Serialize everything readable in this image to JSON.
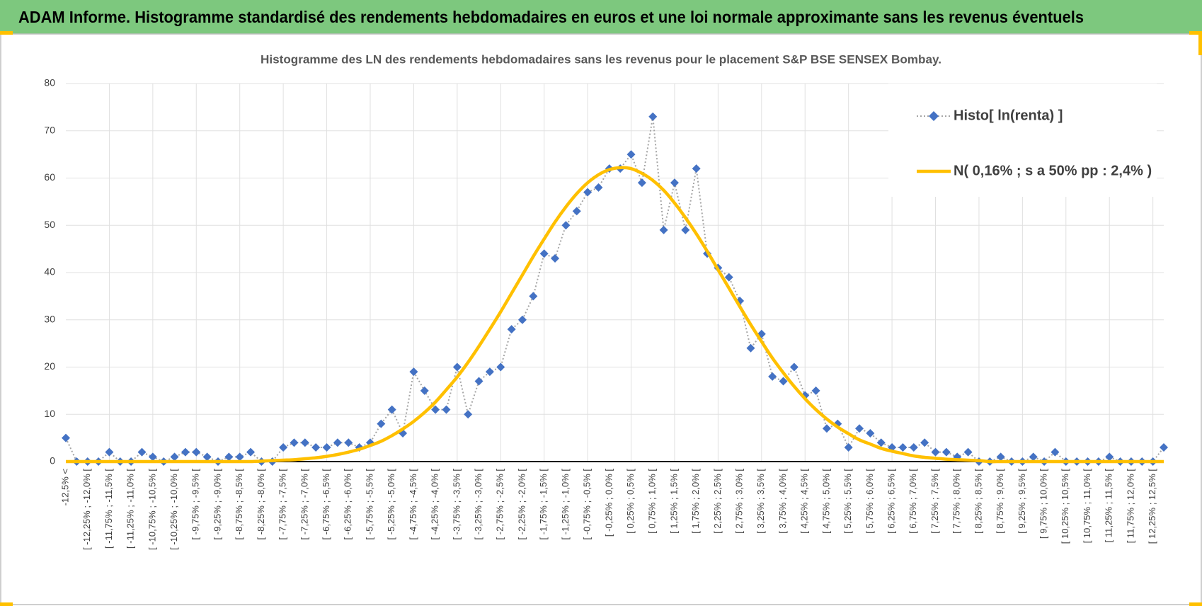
{
  "header": {
    "title": "ADAM Informe. Histogramme standardisé des rendements hebdomadaires en euros et une loi normale approximante sans les revenus éventuels"
  },
  "chart_data": {
    "type": "line",
    "title": "Histogramme des LN des rendements hebdomadaires sans les revenus pour le placement S&P BSE SENSEX Bombay.",
    "categories": [
      "-12,5% <",
      null,
      "[ -12,25% ; -12,0% [",
      null,
      "[ -11,75% ; -11,5% [",
      null,
      "[ -11,25% ; -11,0% [",
      null,
      "[ -10,75% ; -10,5% [",
      null,
      "[ -10,25% ; -10,0% [",
      null,
      "[ -9,75% ; -9,5% [",
      null,
      "[ -9,25% ; -9,0% [",
      null,
      "[ -8,75% ; -8,5% [",
      null,
      "[ -8,25% ; -8,0% [",
      null,
      "[ -7,75% ; -7,5% [",
      null,
      "[ -7,25% ; -7,0% [",
      null,
      "[ -6,75% ; -6,5% [",
      null,
      "[ -6,25% ; -6,0% [",
      null,
      "[ -5,75% ; -5,5% [",
      null,
      "[ -5,25% ; -5,0% [",
      null,
      "[ -4,75% ; -4,5% [",
      null,
      "[ -4,25% ; -4,0% [",
      null,
      "[ -3,75% ; -3,5% [",
      null,
      "[ -3,25% ; -3,0% [",
      null,
      "[ -2,75% ; -2,5% [",
      null,
      "[ -2,25% ; -2,0% [",
      null,
      "[ -1,75% ; -1,5% [",
      null,
      "[ -1,25% ; -1,0% [",
      null,
      "[ -0,75% ; -0,5% [",
      null,
      "[ -0,25% ; 0,0% [",
      null,
      "[ 0,25% ; 0,5% [",
      null,
      "[ 0,75% ; 1,0% [",
      null,
      "[ 1,25% ; 1,5% [",
      null,
      "[ 1,75% ; 2,0% [",
      null,
      "[ 2,25% ; 2,5% [",
      null,
      "[ 2,75% ; 3,0% [",
      null,
      "[ 3,25% ; 3,5% [",
      null,
      "[ 3,75% ; 4,0% [",
      null,
      "[ 4,25% ; 4,5% [",
      null,
      "[ 4,75% ; 5,0% [",
      null,
      "[ 5,25% ; 5,5% [",
      null,
      "[ 5,75% ; 6,0% [",
      null,
      "[ 6,25% ; 6,5% [",
      null,
      "[ 6,75% ; 7,0% [",
      null,
      "[ 7,25% ; 7,5% [",
      null,
      "[ 7,75% ; 8,0% [",
      null,
      "[ 8,25% ; 8,5% [",
      null,
      "[ 8,75% ; 9,0% [",
      null,
      "[ 9,25% ; 9,5% [",
      null,
      "[ 9,75% ; 10,0% [",
      null,
      "[ 10,25% ; 10,5% [",
      null,
      "[ 10,75% ; 11,0% [",
      null,
      "[ 11,25% ; 11,5% [",
      null,
      "[ 11,75% ; 12,0% [",
      null,
      "[ 12,25% ; 12,5% [",
      null
    ],
    "series": [
      {
        "name": "Histo[ ln(renta) ]",
        "color": "#4472c4",
        "line_color": "#a5a5a5",
        "marker": "diamond",
        "values": [
          5,
          0,
          0,
          0,
          2,
          0,
          0,
          2,
          1,
          0,
          1,
          2,
          2,
          1,
          0,
          1,
          1,
          2,
          0,
          0,
          3,
          4,
          4,
          3,
          3,
          4,
          4,
          3,
          4,
          8,
          11,
          6,
          19,
          15,
          11,
          11,
          20,
          10,
          17,
          19,
          20,
          28,
          30,
          35,
          44,
          43,
          50,
          53,
          57,
          58,
          62,
          62,
          65,
          59,
          73,
          49,
          59,
          49,
          62,
          44,
          41,
          39,
          34,
          24,
          27,
          18,
          17,
          20,
          14,
          15,
          7,
          8,
          3,
          7,
          6,
          4,
          3,
          3,
          3,
          4,
          2,
          2,
          1,
          2,
          0,
          0,
          1,
          0,
          0,
          1,
          0,
          2,
          0,
          0,
          0,
          0,
          1,
          0,
          0,
          0,
          0,
          3
        ]
      },
      {
        "name": "N( 0,16% ; s a 50% pp : 2,4% )",
        "color": "#ffc000",
        "smooth": true,
        "values": [
          0,
          0,
          0,
          0,
          0,
          0,
          0,
          0,
          0,
          0,
          0,
          0,
          0,
          0,
          0,
          0,
          0,
          0,
          0.1,
          0.2,
          0.3,
          0.4,
          0.6,
          0.8,
          1.1,
          1.5,
          2.0,
          2.6,
          3.4,
          4.3,
          5.5,
          6.9,
          8.5,
          10.4,
          12.6,
          15.2,
          17.9,
          21.0,
          24.4,
          28.0,
          31.7,
          35.6,
          39.5,
          43.4,
          47.1,
          50.7,
          53.9,
          56.7,
          59.0,
          60.7,
          61.8,
          62.2,
          62.0,
          61.0,
          59.5,
          57.4,
          54.7,
          51.6,
          48.2,
          44.5,
          40.6,
          36.7,
          32.8,
          29.0,
          25.4,
          21.9,
          18.8,
          15.9,
          13.3,
          11.0,
          9.0,
          7.3,
          5.9,
          4.6,
          3.7,
          2.8,
          2.2,
          1.7,
          1.2,
          0.9,
          0.7,
          0.5,
          0.4,
          0.3,
          0.2,
          0,
          0,
          0,
          0,
          0,
          0,
          0,
          0,
          0,
          0,
          0,
          0,
          0,
          0,
          0,
          0,
          0
        ]
      }
    ],
    "ylim": [
      0,
      80
    ],
    "yticks": [
      0,
      10,
      20,
      30,
      40,
      50,
      60,
      70,
      80
    ],
    "grid": true,
    "legend": "top-right"
  }
}
